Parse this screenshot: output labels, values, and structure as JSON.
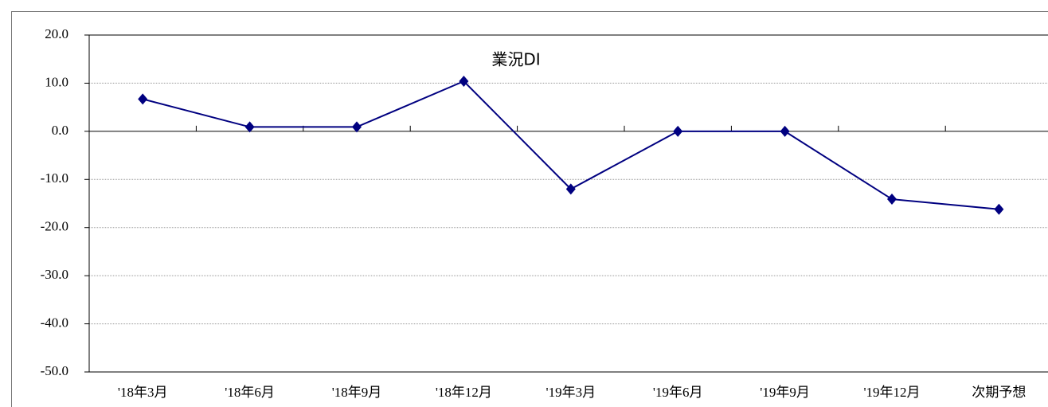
{
  "chart_data": {
    "type": "line",
    "title": "業況DI",
    "categories": [
      "'18年3月",
      "'18年6月",
      "'18年9月",
      "'18年12月",
      "'19年3月",
      "'19年6月",
      "'19年9月",
      "'19年12月",
      "次期予想"
    ],
    "series": [
      {
        "name": "業況DI",
        "color": "#000080",
        "values": [
          6.7,
          0.9,
          0.9,
          10.4,
          -12.0,
          0.0,
          0.0,
          -14.1,
          -16.2
        ]
      }
    ],
    "ylim": [
      -50,
      20
    ],
    "yticks": [
      {
        "value": -50,
        "label": "-50.0"
      },
      {
        "value": -40,
        "label": "-40.0"
      },
      {
        "value": -30,
        "label": "-30.0"
      },
      {
        "value": -20,
        "label": "-20.0"
      },
      {
        "value": -10,
        "label": "-10.0"
      },
      {
        "value": 0,
        "label": "0.0"
      },
      {
        "value": 10,
        "label": "10.0"
      },
      {
        "value": 20,
        "label": "20.0"
      }
    ],
    "grid": true
  }
}
